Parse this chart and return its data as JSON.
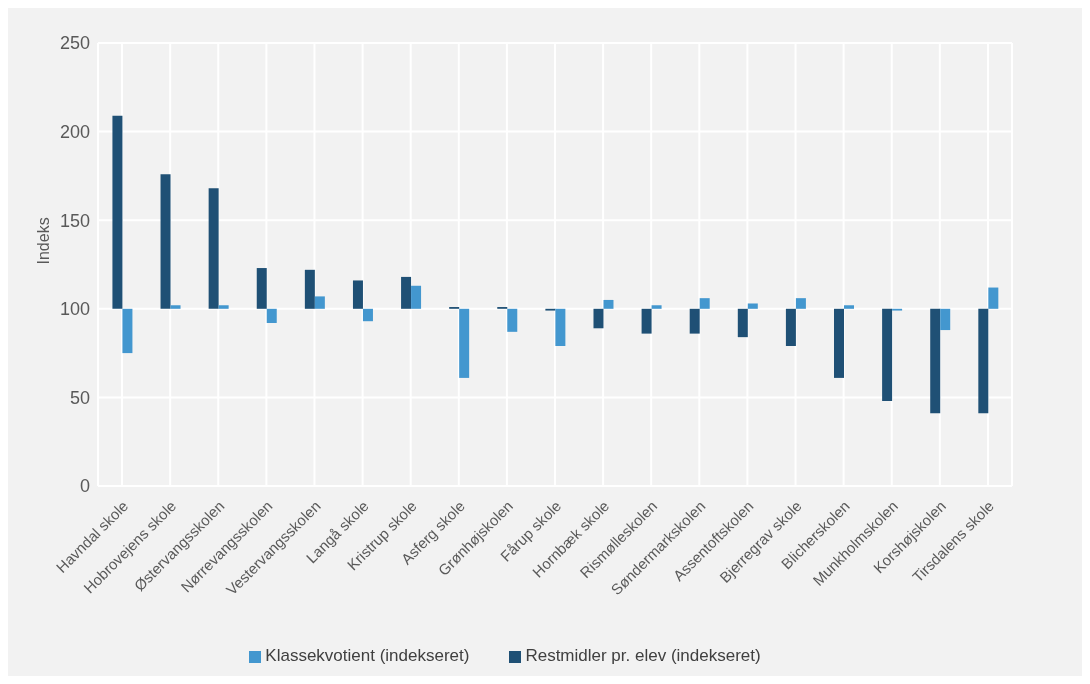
{
  "chart_data": {
    "type": "bar",
    "ylabel": "Indeks",
    "categories": [
      "Havndal skole",
      "Hobrovejens skole",
      "Østervangsskolen",
      "Nørrevangsskolen",
      "Vestervangsskolen",
      "Langå skole",
      "Kristrup skole",
      "Asferg skole",
      "Grønhøjskolen",
      "Fårup skole",
      "Hornbæk skole",
      "Rismølleskolen",
      "Søndermarkskolen",
      "Assentoftskolen",
      "Bjerregrav skole",
      "Blicherskolen",
      "Munkholmskolen",
      "Korshøjskolen",
      "Tirsdalens skole"
    ],
    "series": [
      {
        "name": "Restmidler pr. elev (indekseret)",
        "color": "#1f5075",
        "base": [
          100,
          100,
          100,
          100,
          100,
          100,
          100,
          100,
          100,
          100,
          100,
          100,
          100,
          100,
          100,
          100,
          100,
          100,
          100
        ],
        "values": [
          109,
          76,
          68,
          23,
          22,
          16,
          18,
          1,
          1,
          -1,
          -11,
          -14,
          -14,
          -16,
          -21,
          -39,
          -52,
          -59,
          -59
        ]
      },
      {
        "name": "Klassekvotient (indekseret)",
        "color": "#4397cf",
        "base": [
          100,
          100,
          100,
          100,
          100,
          100,
          100,
          100,
          100,
          100,
          100,
          100,
          100,
          100,
          100,
          100,
          100,
          100,
          100
        ],
        "values": [
          -25,
          2,
          2,
          -8,
          7,
          -7,
          13,
          -39,
          -13,
          -21,
          5,
          2,
          6,
          3,
          6,
          2,
          -1,
          -12,
          12
        ]
      }
    ],
    "ylim": [
      0,
      250
    ],
    "yticks": [
      0,
      50,
      100,
      150,
      200,
      250
    ],
    "grid": true,
    "legend": "bottom"
  }
}
